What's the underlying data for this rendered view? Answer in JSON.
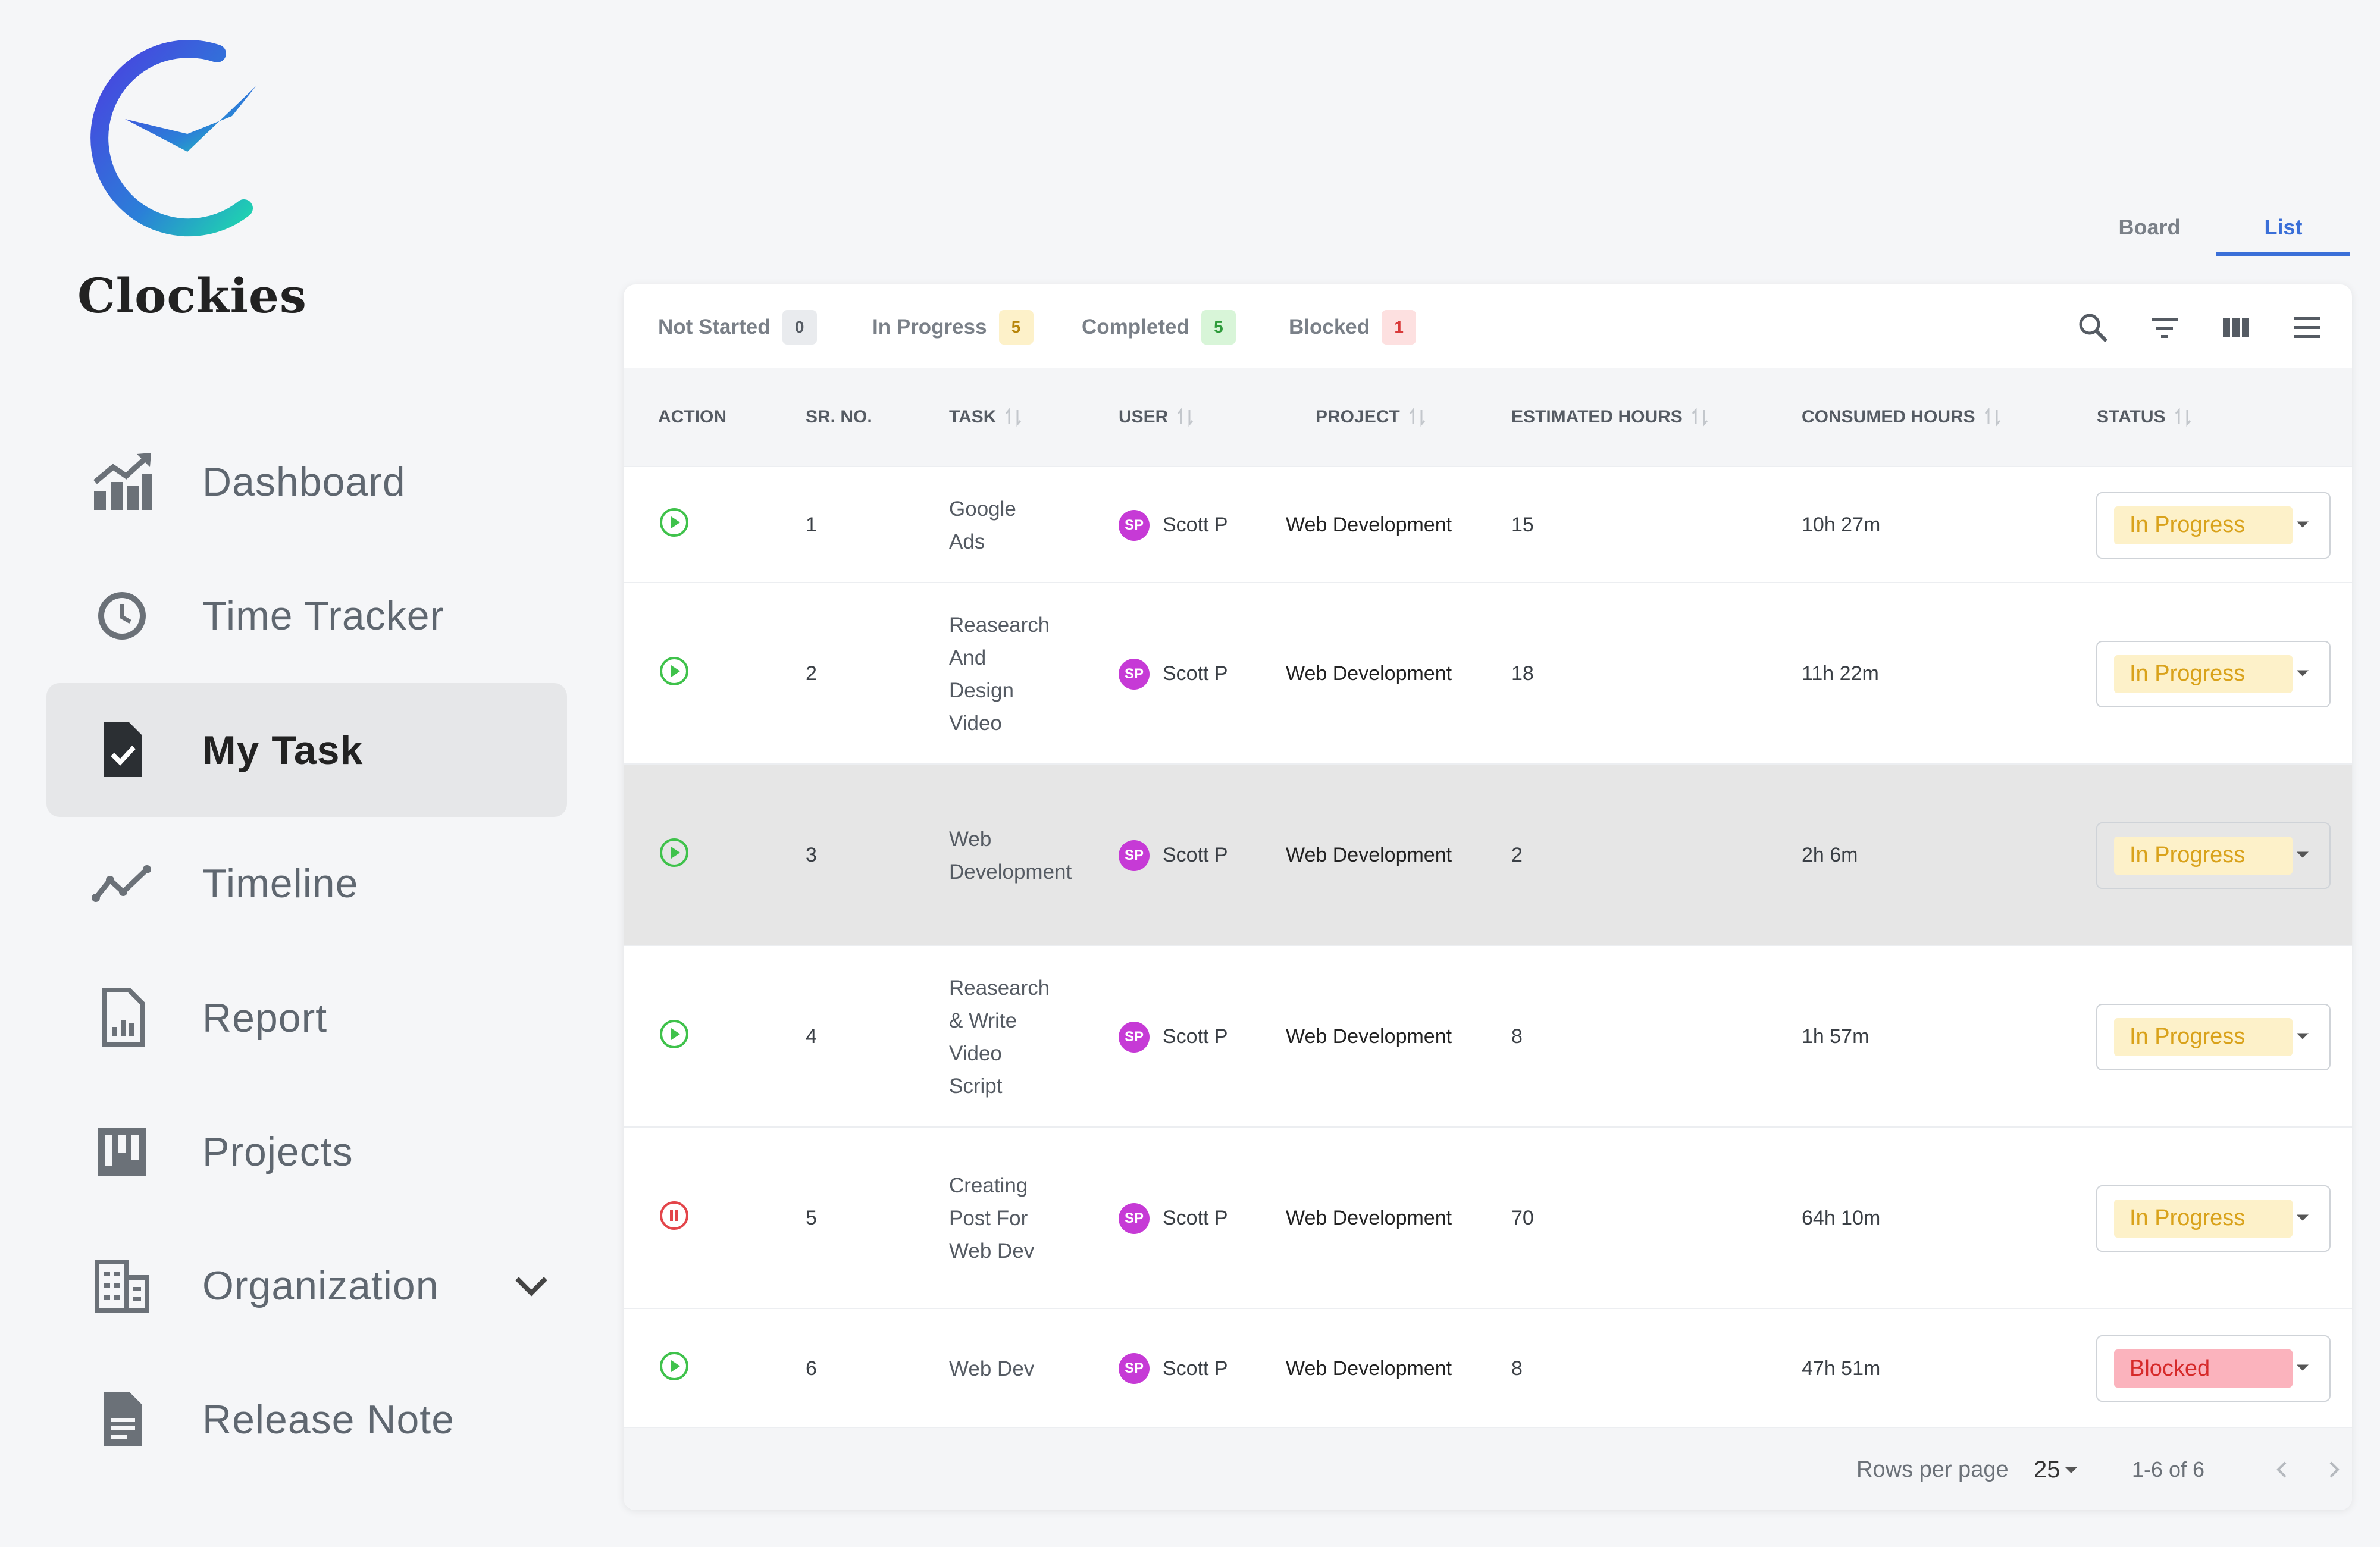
{
  "app": {
    "name": "Clockies"
  },
  "sidebar": {
    "items": [
      {
        "label": "Dashboard",
        "icon": "dashboard-chart-icon"
      },
      {
        "label": "Time Tracker",
        "icon": "clock-icon"
      },
      {
        "label": "My Task",
        "icon": "task-check-icon",
        "active": true
      },
      {
        "label": "Timeline",
        "icon": "timeline-icon"
      },
      {
        "label": "Report",
        "icon": "report-icon"
      },
      {
        "label": "Projects",
        "icon": "projects-board-icon"
      },
      {
        "label": "Organization",
        "icon": "organization-icon",
        "expandable": true
      },
      {
        "label": "Release Note",
        "icon": "release-note-icon"
      }
    ]
  },
  "view_tabs": {
    "board": "Board",
    "list": "List",
    "active": "List"
  },
  "filters": [
    {
      "label": "Not Started",
      "count": "0",
      "bg": "#e9ebee",
      "fg": "#555b63"
    },
    {
      "label": "In Progress",
      "count": "5",
      "bg": "#fdf1c9",
      "fg": "#b8860b"
    },
    {
      "label": "Completed",
      "count": "5",
      "bg": "#d8f5d8",
      "fg": "#2e9b3a"
    },
    {
      "label": "Blocked",
      "count": "1",
      "bg": "#fde0e0",
      "fg": "#d93a3a"
    }
  ],
  "table": {
    "columns": {
      "action": "ACTION",
      "sr": "SR. NO.",
      "task": "TASK",
      "user": "USER",
      "project": "PROJECT",
      "estimated": "ESTIMATED HOURS",
      "consumed": "CONSUMED HOURS",
      "status": "STATUS"
    },
    "rows": [
      {
        "action": "play",
        "sr": "1",
        "task": [
          "Google",
          "Ads"
        ],
        "user_initials": "SP",
        "user": "Scott  P",
        "project": "Web Development",
        "estimated": "15",
        "consumed": "10h 27m",
        "status": "In Progress"
      },
      {
        "action": "play",
        "sr": "2",
        "task": [
          "Reasearch",
          "And",
          "Design",
          "Video"
        ],
        "user_initials": "SP",
        "user": "Scott  P",
        "project": "Web Development",
        "estimated": "18",
        "consumed": "11h 22m",
        "status": "In Progress"
      },
      {
        "action": "play",
        "sr": "3",
        "task": [
          "Web",
          "Development"
        ],
        "user_initials": "SP",
        "user": "Scott  P",
        "project": "Web Development",
        "estimated": "2",
        "consumed": "2h 6m",
        "status": "In Progress",
        "highlighted": true
      },
      {
        "action": "play",
        "sr": "4",
        "task": [
          "Reasearch",
          "& Write",
          "Video",
          "Script"
        ],
        "user_initials": "SP",
        "user": "Scott  P",
        "project": "Web Development",
        "estimated": "8",
        "consumed": "1h 57m",
        "status": "In Progress"
      },
      {
        "action": "pause",
        "sr": "5",
        "task": [
          "Creating",
          "Post For",
          "Web  Dev"
        ],
        "user_initials": "SP",
        "user": "Scott  P",
        "project": "Web Development",
        "estimated": "70",
        "consumed": "64h 10m",
        "status": "In Progress"
      },
      {
        "action": "play",
        "sr": "6",
        "task": [
          "Web  Dev"
        ],
        "user_initials": "SP",
        "user": "Scott  P",
        "project": "Web Development",
        "estimated": "8",
        "consumed": "47h 51m",
        "status": "Blocked"
      }
    ]
  },
  "status_colors": {
    "In Progress": {
      "bg": "#fdf1c9",
      "fg": "#d9a21b"
    },
    "Blocked": {
      "bg": "#fbb3bd",
      "fg": "#d62a2a"
    }
  },
  "pagination": {
    "rows_per_page_label": "Rows per page",
    "rows_per_page": "25",
    "range": "1-6 of 6"
  }
}
